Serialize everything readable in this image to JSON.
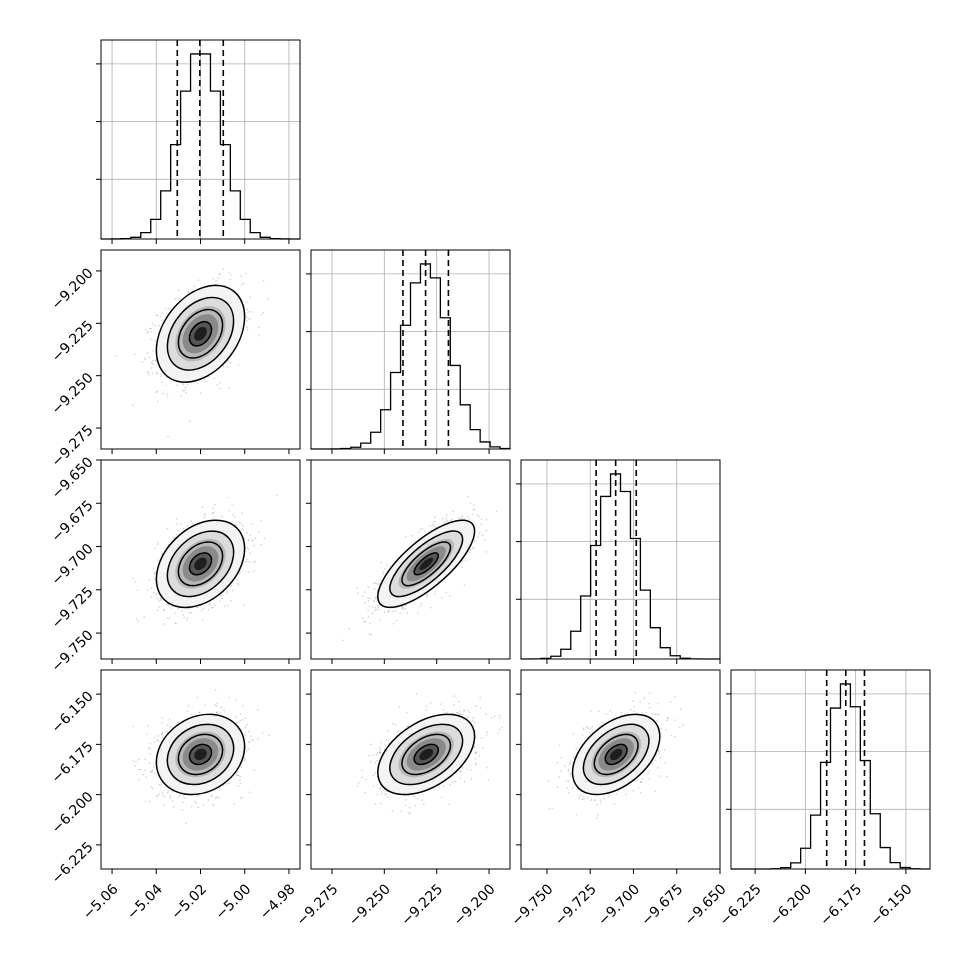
{
  "chart_data": {
    "type": "corner",
    "parameters": [
      {
        "mean": -5.02,
        "sd": 0.0095,
        "q16": -5.0305,
        "q50": -5.0203,
        "q84": -5.0097,
        "hist_peak_frac": 0.93,
        "range": [
          -5.065,
          -4.975
        ],
        "ticks": [
          -5.06,
          -5.04,
          -5.02,
          -5.0,
          -4.98
        ],
        "tick_labels": [
          "−5.06",
          "−5.04",
          "−5.02",
          "−5.00",
          "−4.98"
        ]
      },
      {
        "mean": -9.23,
        "sd": 0.011,
        "q16": -9.2411,
        "q50": -9.2303,
        "q84": -9.2194,
        "hist_peak_frac": 0.93,
        "range": [
          -9.285,
          -9.19
        ],
        "ticks": [
          -9.275,
          -9.25,
          -9.225,
          -9.2
        ],
        "tick_labels": [
          "−9.275",
          "−9.250",
          "−9.225",
          "−9.200"
        ]
      },
      {
        "mean": -9.71,
        "sd": 0.012,
        "q16": -9.7216,
        "q50": -9.7103,
        "q84": -9.6984,
        "hist_peak_frac": 0.93,
        "range": [
          -9.765,
          -9.65
        ],
        "ticks": [
          -9.75,
          -9.725,
          -9.7,
          -9.675,
          -9.65
        ],
        "tick_labels": [
          "−9.750",
          "−9.725",
          "−9.700",
          "−9.675",
          "−9.650"
        ]
      },
      {
        "mean": -6.18,
        "sd": 0.0095,
        "q16": -6.1894,
        "q50": -6.1799,
        "q84": -6.1706,
        "hist_peak_frac": 0.93,
        "range": [
          -6.237,
          -6.138
        ],
        "ticks": [
          -6.225,
          -6.2,
          -6.175,
          -6.15
        ],
        "tick_labels": [
          "−6.225",
          "−6.200",
          "−6.175",
          "−6.150"
        ]
      }
    ],
    "correlations": [
      [
        1.0,
        0.35,
        0.35,
        0.2
      ],
      [
        0.35,
        1.0,
        0.75,
        0.45
      ],
      [
        0.35,
        0.75,
        1.0,
        0.45
      ],
      [
        0.2,
        0.45,
        0.45,
        1.0
      ]
    ],
    "contour_levels_sigma": [
      0.5,
      1.0,
      1.5,
      2.0
    ],
    "quantiles": [
      0.16,
      0.5,
      0.84
    ],
    "grid": true,
    "histogram_bins": 20
  }
}
